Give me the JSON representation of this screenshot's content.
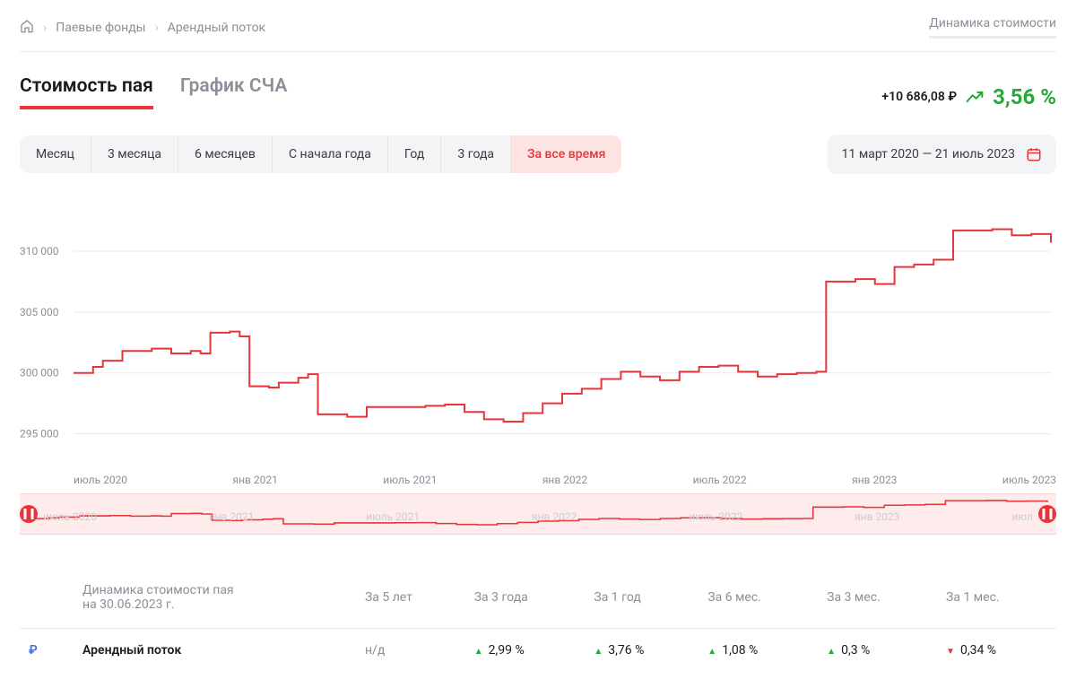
{
  "breadcrumbs": {
    "home_aria": "Главная",
    "item1": "Паевые фонды",
    "item2": "Арендный поток"
  },
  "top_link": "Динамика стоимости",
  "tabs": {
    "price": "Стоимость пая",
    "nav": "График СЧА"
  },
  "kpi": {
    "abs": "+10 686,08 ₽",
    "pct": "3,56 %"
  },
  "ranges": {
    "m1": "Месяц",
    "m3": "3 месяца",
    "m6": "6 месяцев",
    "ytd": "С начала года",
    "y1": "Год",
    "y3": "3 года",
    "all": "За все время"
  },
  "date_range": "11 март 2020 — 21 июль 2023",
  "main_chart": {
    "type": "line-step",
    "line_color": "#e6363b",
    "line_width": 2,
    "background_color": "#ffffff",
    "grid_color": "#e7e8eb",
    "ylabel_color": "#8a8f98",
    "ylabel_fontsize": 12,
    "ylim": [
      293500,
      312500
    ],
    "yticks": [
      295000,
      300000,
      305000,
      310000
    ],
    "ytick_labels": [
      "295 000",
      "300 000",
      "305 000",
      "310 000"
    ],
    "xlim": [
      0,
      100
    ],
    "xticks_labels": [
      "июль 2020",
      "янв 2021",
      "июль 2021",
      "янв 2022",
      "июль 2022",
      "янв 2023",
      "июль 2023"
    ],
    "series": [
      [
        0,
        300000
      ],
      [
        2,
        300500
      ],
      [
        3,
        301000
      ],
      [
        5,
        301800
      ],
      [
        7,
        301800
      ],
      [
        8,
        302000
      ],
      [
        10,
        301600
      ],
      [
        12,
        301800
      ],
      [
        13,
        301600
      ],
      [
        14,
        303300
      ],
      [
        16,
        303400
      ],
      [
        17,
        303000
      ],
      [
        18,
        298900
      ],
      [
        20,
        298800
      ],
      [
        21,
        299200
      ],
      [
        23,
        299600
      ],
      [
        24,
        299900
      ],
      [
        25,
        296600
      ],
      [
        28,
        296400
      ],
      [
        30,
        297200
      ],
      [
        33,
        297200
      ],
      [
        36,
        297300
      ],
      [
        38,
        297400
      ],
      [
        40,
        296800
      ],
      [
        42,
        296200
      ],
      [
        44,
        296000
      ],
      [
        46,
        296700
      ],
      [
        48,
        297500
      ],
      [
        50,
        298300
      ],
      [
        52,
        298700
      ],
      [
        54,
        299500
      ],
      [
        56,
        300100
      ],
      [
        58,
        299700
      ],
      [
        60,
        299400
      ],
      [
        62,
        300100
      ],
      [
        64,
        300500
      ],
      [
        66,
        300600
      ],
      [
        68,
        300100
      ],
      [
        70,
        299700
      ],
      [
        72,
        299900
      ],
      [
        74,
        300000
      ],
      [
        76,
        300100
      ],
      [
        77,
        307500
      ],
      [
        80,
        307700
      ],
      [
        82,
        307300
      ],
      [
        84,
        308700
      ],
      [
        86,
        308900
      ],
      [
        88,
        309300
      ],
      [
        90,
        311700
      ],
      [
        94,
        311800
      ],
      [
        96,
        311300
      ],
      [
        98,
        311400
      ],
      [
        100,
        310700
      ]
    ]
  },
  "mini_chart": {
    "background_color": "#fdeceb",
    "line_color": "#e6363b",
    "line_width": 1.6,
    "xticks_labels": [
      "июль 2020",
      "янв 2021",
      "июль 2021",
      "янв 2022",
      "июль 2022",
      "янв 2023",
      "июл"
    ]
  },
  "perf": {
    "header_line1": "Динамика стоимости пая",
    "header_line2": "на 30.06.2023 г.",
    "cols": {
      "y5": "За 5 лет",
      "y3": "За 3 года",
      "y1": "За 1 год",
      "m6": "За 6 мес.",
      "m3": "За 3 мес.",
      "m1": "За 1 мес."
    },
    "row": {
      "currency": "₽",
      "name": "Арендный поток",
      "y5": {
        "text": "н/д",
        "dir": "na"
      },
      "y3": {
        "text": "2,99 %",
        "dir": "up"
      },
      "y1": {
        "text": "3,76 %",
        "dir": "up"
      },
      "m6": {
        "text": "1,08 %",
        "dir": "up"
      },
      "m3": {
        "text": "0,3 %",
        "dir": "up"
      },
      "m1": {
        "text": "0,34 %",
        "dir": "down"
      }
    }
  },
  "colors": {
    "up": "#27a936",
    "down": "#e6363b"
  }
}
